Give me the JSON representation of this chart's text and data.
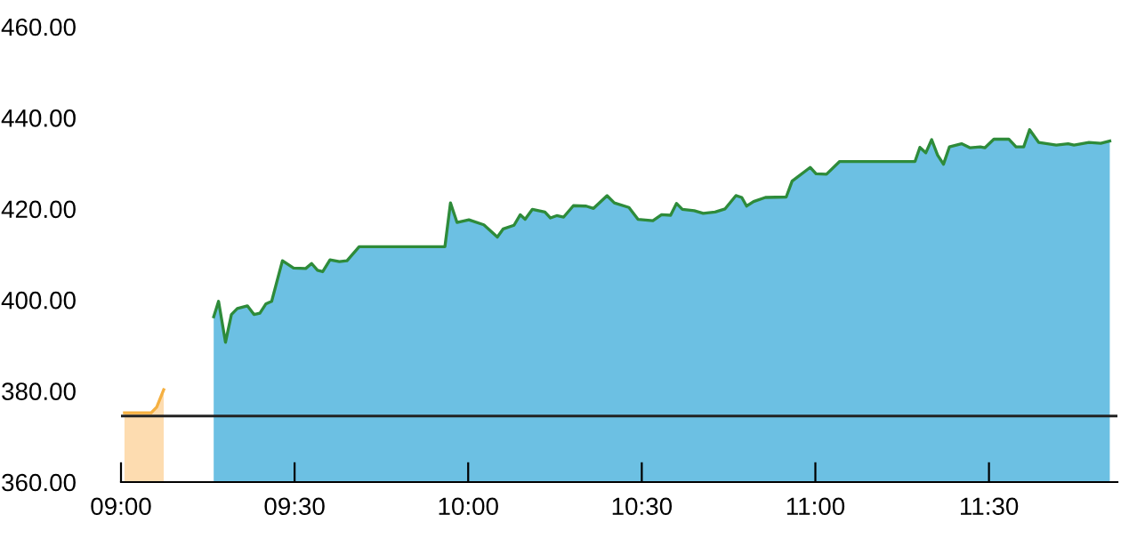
{
  "chart_data": {
    "type": "area",
    "series": [
      {
        "color": "#f5b041",
        "x": [
          9.01,
          9.087,
          9.103,
          9.123
        ],
        "values": [
          375.2,
          375.2,
          376.5,
          380.3
        ]
      },
      {
        "color": "#2e8b3a",
        "x": [
          9.267,
          9.281,
          9.301,
          9.318,
          9.335,
          9.364,
          9.383,
          9.4,
          9.417,
          9.434,
          9.465,
          9.497,
          9.532,
          9.549,
          9.566,
          9.581,
          9.602,
          9.629,
          9.651,
          9.686,
          9.933,
          9.949,
          9.968,
          10.002,
          10.045,
          10.084,
          10.101,
          10.132,
          10.15,
          10.164,
          10.185,
          10.221,
          10.237,
          10.255,
          10.275,
          10.303,
          10.34,
          10.361,
          10.4,
          10.421,
          10.463,
          10.489,
          10.532,
          10.557,
          10.583,
          10.6,
          10.617,
          10.651,
          10.677,
          10.711,
          10.74,
          10.771,
          10.788,
          10.802,
          10.822,
          10.856,
          10.916,
          10.933,
          10.985,
          11.002,
          11.032,
          11.07,
          11.287,
          11.301,
          11.318,
          11.335,
          11.352,
          11.369,
          11.386,
          11.421,
          11.446,
          11.475,
          11.488,
          11.514,
          11.557,
          11.578,
          11.6,
          11.617,
          11.643,
          11.694,
          11.728,
          11.745,
          11.788,
          11.822,
          11.848
        ],
        "values": [
          396.3,
          399.7,
          390.7,
          396.8,
          398.1,
          398.7,
          396.8,
          397.1,
          399.1,
          399.7,
          408.6,
          407.0,
          406.9,
          408.0,
          406.5,
          406.2,
          408.8,
          408.4,
          408.6,
          411.7,
          411.7,
          421.3,
          417.0,
          417.6,
          416.5,
          413.8,
          415.6,
          416.4,
          418.7,
          417.7,
          419.9,
          419.3,
          418.0,
          418.5,
          418.2,
          420.7,
          420.6,
          420.1,
          422.9,
          421.3,
          420.3,
          417.7,
          417.4,
          418.7,
          418.6,
          421.2,
          419.9,
          419.6,
          419.0,
          419.3,
          420.0,
          422.9,
          422.5,
          420.6,
          421.6,
          422.5,
          422.6,
          426.1,
          429.1,
          427.7,
          427.6,
          430.4,
          430.4,
          433.5,
          432.3,
          435.2,
          431.8,
          429.8,
          433.6,
          434.3,
          433.4,
          433.6,
          433.4,
          435.3,
          435.3,
          433.6,
          433.6,
          437.4,
          434.6,
          434.0,
          434.3,
          434.0,
          434.6,
          434.4,
          434.9
        ]
      }
    ],
    "xlim": [
      9,
      11.87
    ],
    "ylim": [
      360,
      460
    ],
    "xticks": [
      {
        "value": 9,
        "label": "09:00"
      },
      {
        "value": 9.5,
        "label": "09:30"
      },
      {
        "value": 10,
        "label": "10:00"
      },
      {
        "value": 10.5,
        "label": "10:30"
      },
      {
        "value": 11,
        "label": "11:00"
      },
      {
        "value": 11.5,
        "label": "11:30"
      }
    ],
    "yticks": [
      {
        "value": 360,
        "label": "360.00"
      },
      {
        "value": 380,
        "label": "380.00"
      },
      {
        "value": 400,
        "label": "400.00"
      },
      {
        "value": 420,
        "label": "420.00"
      },
      {
        "value": 440,
        "label": "440.00"
      },
      {
        "value": 460,
        "label": "460.00"
      }
    ],
    "ref_lines": [
      {
        "axis": "y",
        "value": 374.5,
        "color": "#222222"
      }
    ],
    "grid": false,
    "legend": false
  }
}
